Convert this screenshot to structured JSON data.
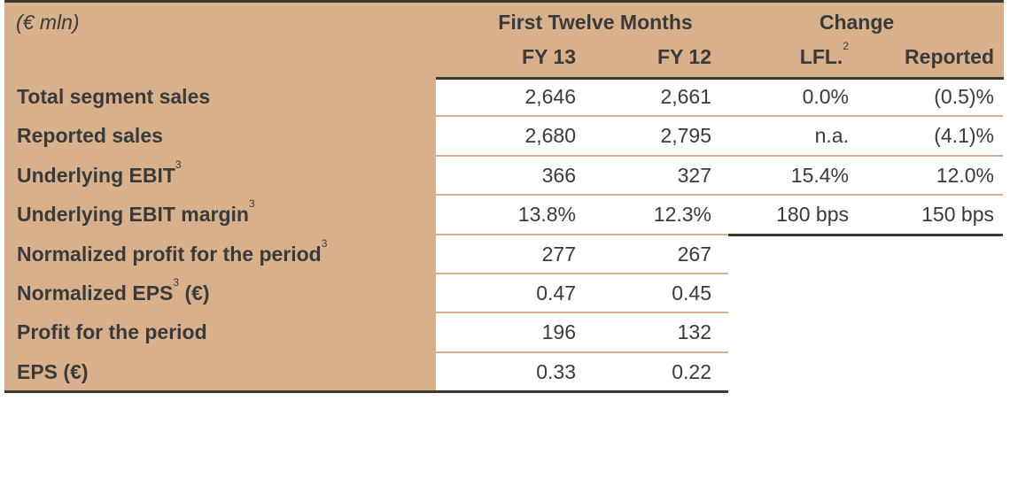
{
  "header": {
    "unit": "(€ mln)",
    "group_1": "First Twelve Months",
    "group_2": "Change",
    "columns": [
      {
        "label": "FY 13"
      },
      {
        "label": "FY 12"
      },
      {
        "label": "LFL.",
        "sup": "2"
      },
      {
        "label": "Reported"
      }
    ]
  },
  "table": {
    "rows": [
      {
        "label": "Total segment sales",
        "values": [
          "2,646",
          "2,661",
          "0.0%",
          "(0.5)%"
        ]
      },
      {
        "label": "Reported sales",
        "values": [
          "2,680",
          "2,795",
          "n.a.",
          "(4.1)%"
        ]
      },
      {
        "label": "Underlying EBIT",
        "sup": "3",
        "values": [
          "366",
          "327",
          "15.4%",
          "12.0%"
        ]
      },
      {
        "label": "Underlying EBIT margin",
        "sup": "3",
        "values": [
          "13.8%",
          "12.3%",
          "180 bps",
          "150 bps"
        ]
      },
      {
        "label": "Normalized profit for the period",
        "sup": "3",
        "values": [
          "277",
          "267"
        ]
      },
      {
        "label": "Normalized EPS",
        "sup": "3",
        "suffix": " (€)",
        "values": [
          "0.47",
          "0.45"
        ]
      },
      {
        "label": "Profit for the period",
        "values": [
          "196",
          "132"
        ]
      },
      {
        "label": "EPS (€)",
        "values": [
          "0.33",
          "0.22"
        ]
      }
    ]
  }
}
